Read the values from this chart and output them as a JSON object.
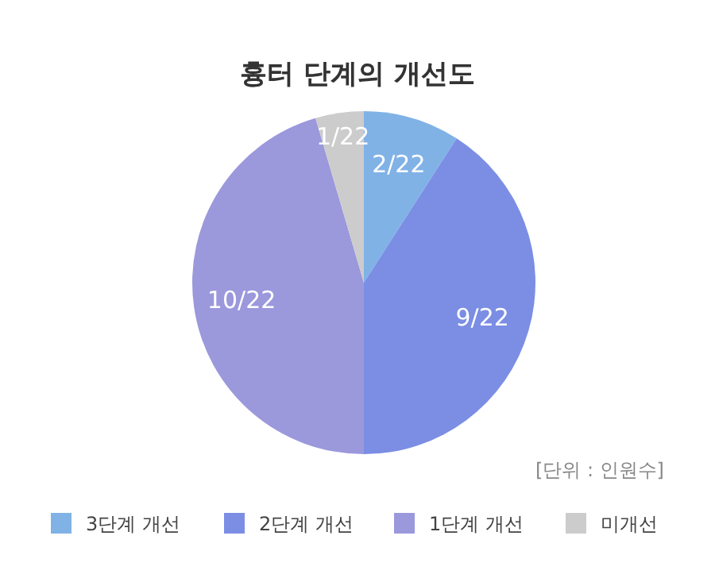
{
  "chart_data": {
    "type": "pie",
    "title": "흉터 단계의 개선도",
    "categories": [
      "3단계 개선",
      "2단계 개선",
      "1단계 개선",
      "미개선"
    ],
    "values": [
      2,
      9,
      10,
      1
    ],
    "value_labels": [
      "2/22",
      "9/22",
      "10/22",
      "1/22"
    ],
    "colors": [
      "#80b2e6",
      "#7b8ee4",
      "#9b98dc",
      "#cccccc"
    ],
    "annotations": [
      "[단위 : 인원수]"
    ],
    "legend": "bottom"
  }
}
